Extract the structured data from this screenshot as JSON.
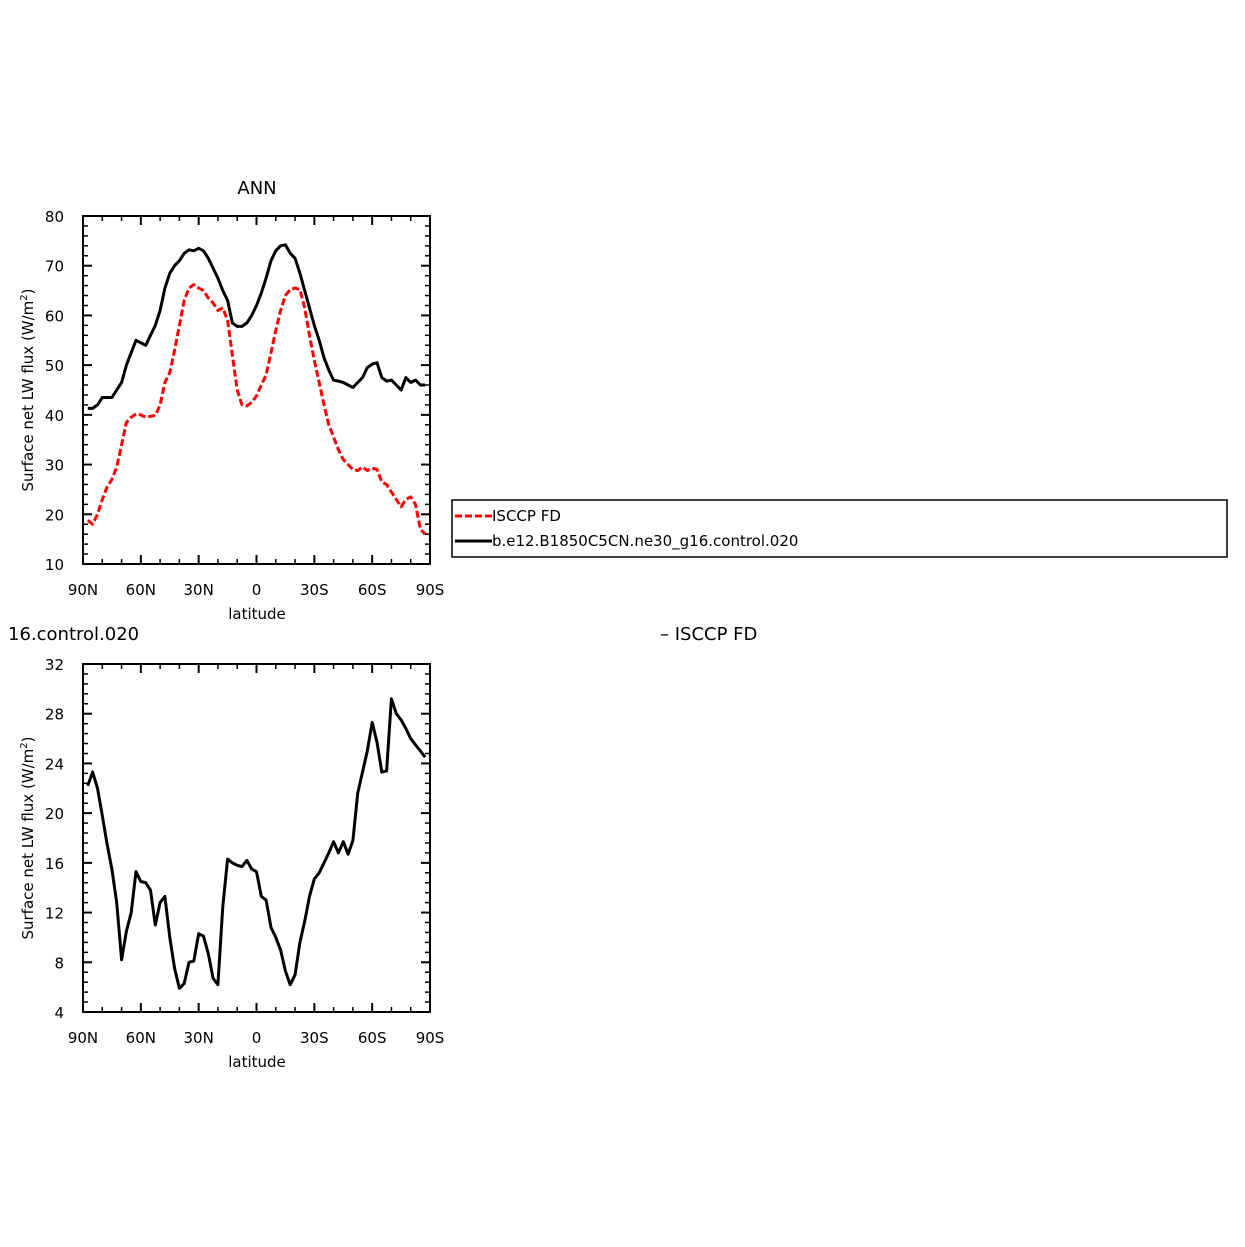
{
  "chart_data": [
    {
      "type": "line",
      "title": "ANN",
      "xlabel": "latitude",
      "ylabel": "Surface net LW flux (W/m²)",
      "ylabel_main": "Surface net LW flux (W/m",
      "ylabel_sup": "2",
      "ylabel_end": ")",
      "xlim": [
        90,
        -90
      ],
      "ylim": [
        10,
        80
      ],
      "xticks": [
        90,
        60,
        30,
        0,
        -30,
        -60,
        -90
      ],
      "xtick_labels": [
        "90N",
        "60N",
        "30N",
        "0",
        "30S",
        "60S",
        "90S"
      ],
      "yticks": [
        10,
        20,
        30,
        40,
        50,
        60,
        70,
        80
      ],
      "ytick_labels": [
        "10",
        "20",
        "30",
        "40",
        "50",
        "60",
        "70",
        "80"
      ],
      "grid": false,
      "legend": {
        "placement": "right",
        "entries": [
          "ISCCP FD",
          "b.e12.B1850C5CN.ne30_g16.control.020"
        ]
      },
      "series": [
        {
          "name": "ISCCP FD",
          "color": "#ff0000",
          "dash": "dashed",
          "x": [
            87.5,
            85,
            82.5,
            80,
            77.5,
            75,
            72.5,
            70,
            67.5,
            65,
            62.5,
            60,
            57.5,
            55,
            52.5,
            50,
            47.5,
            45,
            42.5,
            40,
            37.5,
            35,
            32.5,
            30,
            27.5,
            25,
            22.5,
            20,
            17.5,
            15,
            12.5,
            10,
            7.5,
            5,
            2.5,
            0,
            -2.5,
            -5,
            -7.5,
            -10,
            -12.5,
            -15,
            -17.5,
            -20,
            -22.5,
            -25,
            -27.5,
            -30,
            -32.5,
            -35,
            -37.5,
            -40,
            -42.5,
            -45,
            -47.5,
            -50,
            -52.5,
            -55,
            -57.5,
            -60,
            -62.5,
            -65,
            -67.5,
            -70,
            -72.5,
            -75,
            -77.5,
            -80,
            -82.5,
            -85,
            -87.5
          ],
          "y": [
            18.8,
            18.0,
            20.0,
            23.0,
            25.5,
            27.0,
            29.5,
            34.0,
            38.5,
            39.5,
            40.2,
            40.0,
            39.5,
            39.7,
            39.9,
            42.0,
            46.5,
            48.5,
            53.0,
            58.0,
            63.0,
            65.5,
            66.2,
            65.5,
            65.0,
            63.5,
            62.5,
            61.0,
            61.5,
            59.0,
            52.0,
            45.0,
            42.0,
            41.8,
            42.5,
            43.8,
            46.0,
            48.0,
            52.5,
            57.0,
            61.0,
            64.0,
            65.2,
            65.5,
            65.2,
            61.5,
            56.0,
            51.0,
            46.5,
            42.0,
            38.0,
            35.5,
            33.0,
            31.0,
            30.0,
            29.0,
            28.8,
            29.5,
            28.8,
            29.3,
            29.0,
            26.5,
            26.0,
            24.5,
            23.0,
            21.5,
            23.0,
            23.5,
            22.0,
            17.0,
            16.0
          ]
        },
        {
          "name": "b.e12.B1850C5CN.ne30_g16.control.020",
          "color": "#000000",
          "dash": "solid",
          "x": [
            87.5,
            85,
            82.5,
            80,
            77.5,
            75,
            72.5,
            70,
            67.5,
            65,
            62.5,
            60,
            57.5,
            55,
            52.5,
            50,
            47.5,
            45,
            42.5,
            40,
            37.5,
            35,
            32.5,
            30,
            27.5,
            25,
            22.5,
            20,
            17.5,
            15,
            12.5,
            10,
            7.5,
            5,
            2.5,
            0,
            -2.5,
            -5,
            -7.5,
            -10,
            -12.5,
            -15,
            -17.5,
            -20,
            -22.5,
            -25,
            -27.5,
            -30,
            -32.5,
            -35,
            -37.5,
            -40,
            -42.5,
            -45,
            -47.5,
            -50,
            -52.5,
            -55,
            -57.5,
            -60,
            -62.5,
            -65,
            -67.5,
            -70,
            -72.5,
            -75,
            -77.5,
            -80,
            -82.5,
            -85,
            -87.5
          ],
          "y": [
            41.3,
            41.3,
            42.0,
            43.5,
            43.5,
            43.5,
            45.0,
            46.5,
            50.0,
            52.5,
            55.0,
            54.5,
            54.0,
            56.0,
            58.0,
            61.0,
            65.5,
            68.5,
            70.0,
            71.0,
            72.5,
            73.2,
            73.0,
            73.5,
            73.0,
            71.5,
            69.5,
            67.5,
            65.0,
            63.0,
            58.5,
            57.8,
            57.8,
            58.5,
            60.0,
            62.0,
            64.5,
            67.5,
            71.0,
            73.0,
            74.0,
            74.2,
            72.5,
            71.5,
            68.5,
            65.0,
            61.5,
            58.0,
            55.0,
            51.5,
            49.0,
            47.0,
            46.8,
            46.5,
            46.0,
            45.5,
            46.5,
            47.5,
            49.5,
            50.2,
            50.5,
            47.5,
            46.8,
            47.0,
            46.0,
            45.0,
            47.5,
            46.5,
            47.0,
            46.0,
            46.0
          ]
        }
      ]
    },
    {
      "type": "line",
      "title": "16.control.020",
      "title_right": "– ISCCP FD",
      "xlabel": "latitude",
      "ylabel": "Surface net LW flux (W/m²)",
      "ylabel_main": "Surface net LW flux (W/m",
      "ylabel_sup": "2",
      "ylabel_end": ")",
      "xlim": [
        90,
        -90
      ],
      "ylim": [
        4,
        32
      ],
      "xticks": [
        90,
        60,
        30,
        0,
        -30,
        -60,
        -90
      ],
      "xtick_labels": [
        "90N",
        "60N",
        "30N",
        "0",
        "30S",
        "60S",
        "90S"
      ],
      "yticks": [
        4,
        8,
        12,
        16,
        20,
        24,
        28,
        32
      ],
      "ytick_labels": [
        "4",
        "8",
        "12",
        "16",
        "20",
        "24",
        "28",
        "32"
      ],
      "grid": false,
      "series": [
        {
          "color": "#000000",
          "dash": "solid",
          "x": [
            87.5,
            85,
            82.5,
            80,
            77.5,
            75,
            72.5,
            70,
            67.5,
            65,
            62.5,
            60,
            57.5,
            55,
            52.5,
            50,
            47.5,
            45,
            42.5,
            40,
            37.5,
            35,
            32.5,
            30,
            27.5,
            25,
            22.5,
            20,
            17.5,
            15,
            12.5,
            10,
            7.5,
            5,
            2.5,
            0,
            -2.5,
            -5,
            -7.5,
            -10,
            -12.5,
            -15,
            -17.5,
            -20,
            -22.5,
            -25,
            -27.5,
            -30,
            -32.5,
            -35,
            -37.5,
            -40,
            -42.5,
            -45,
            -47.5,
            -50,
            -52.5,
            -55,
            -57.5,
            -60,
            -62.5,
            -65,
            -67.5,
            -70,
            -72.5,
            -75,
            -77.5,
            -80,
            -82.5,
            -85,
            -87.5
          ],
          "y": [
            22.2,
            23.3,
            22.0,
            19.8,
            17.5,
            15.5,
            12.8,
            8.2,
            10.5,
            12.0,
            15.3,
            14.5,
            14.4,
            13.8,
            11.0,
            12.8,
            13.3,
            10.0,
            7.5,
            5.9,
            6.3,
            8.0,
            8.1,
            10.3,
            10.1,
            8.7,
            6.7,
            6.2,
            12.5,
            16.3,
            16.0,
            15.8,
            15.7,
            16.2,
            15.5,
            15.3,
            13.3,
            13.0,
            10.8,
            10.0,
            9.0,
            7.3,
            6.2,
            7.0,
            9.6,
            11.3,
            13.3,
            14.7,
            15.2,
            16.0,
            16.8,
            17.7,
            16.8,
            17.7,
            16.7,
            17.8,
            21.6,
            23.3,
            25.0,
            27.3,
            25.7,
            23.3,
            23.4,
            29.2,
            28.0,
            27.5,
            26.8,
            26.0,
            25.5,
            25.0,
            24.5
          ]
        }
      ]
    }
  ]
}
